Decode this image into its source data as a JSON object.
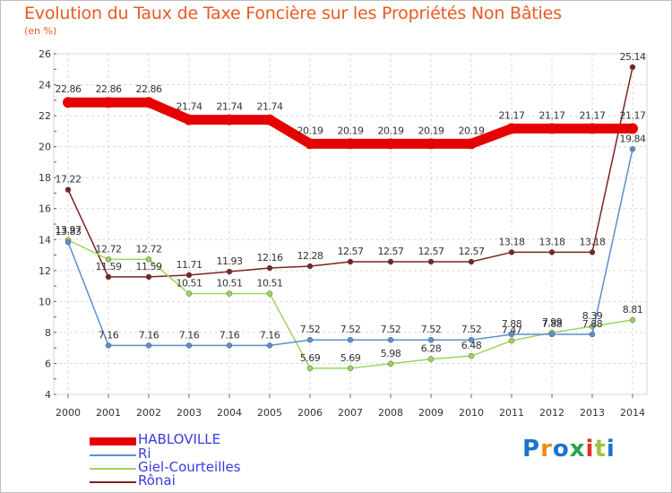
{
  "title": "Evolution du Taux de Taxe Foncière sur les Propriétés Non Bâties",
  "subtitle": "(en %)",
  "logo": {
    "letters": [
      "P",
      "r",
      "o",
      "x",
      "i",
      "t",
      "i"
    ],
    "colors": [
      "#1a75c9",
      "#f08a12",
      "#1a75c9",
      "#2aa34a",
      "#e03022",
      "#9cc63b",
      "#1a75c9"
    ]
  },
  "chart_data": {
    "type": "line",
    "title": "Evolution du Taux de Taxe Foncière sur les Propriétés Non Bâties",
    "ylabel": "(en %)",
    "xlabel": "",
    "categories": [
      "2000",
      "2001",
      "2002",
      "2003",
      "2004",
      "2005",
      "2006",
      "2007",
      "2008",
      "2009",
      "2010",
      "2011",
      "2012",
      "2013",
      "2014"
    ],
    "ylim": [
      4,
      26
    ],
    "yticks": [
      "4",
      "6",
      "8",
      "10",
      "12",
      "14",
      "16",
      "18",
      "20",
      "22",
      "24",
      "26"
    ],
    "grid": true,
    "legend_position": "bottom-left",
    "series": [
      {
        "name": "HABLOVILLE",
        "color": "#e60000",
        "values": [
          22.86,
          22.86,
          22.86,
          21.74,
          21.74,
          21.74,
          20.19,
          20.19,
          20.19,
          20.19,
          20.19,
          21.17,
          21.17,
          21.17,
          21.17
        ],
        "labels": [
          "22.86",
          "22.86",
          "22.86",
          "21.74",
          "21.74",
          "21.74",
          "20.19",
          "20.19",
          "20.19",
          "20.19",
          "20.19",
          "21.17",
          "21.17",
          "21.17",
          "21.17"
        ]
      },
      {
        "name": "Ri",
        "color": "#5a8fd0",
        "values": [
          13.83,
          7.16,
          7.16,
          7.16,
          7.16,
          7.16,
          7.52,
          7.52,
          7.52,
          7.52,
          7.52,
          7.88,
          7.88,
          7.88,
          19.84
        ],
        "labels": [
          "13.83",
          "7.16",
          "7.16",
          "7.16",
          "7.16",
          "7.16",
          "7.52",
          "7.52",
          "7.52",
          "7.52",
          "7.52",
          "7.88",
          "7.88",
          "7.88",
          "19.84"
        ]
      },
      {
        "name": "Giel-Courteilles",
        "color": "#99d65b",
        "values": [
          13.97,
          12.72,
          12.72,
          10.51,
          10.51,
          10.51,
          5.69,
          5.69,
          5.98,
          6.28,
          6.48,
          7.47,
          7.99,
          8.39,
          8.81
        ],
        "labels": [
          "13.97",
          "12.72",
          "12.72",
          "10.51",
          "10.51",
          "10.51",
          "5.69",
          "5.69",
          "5.98",
          "6.28",
          "6.48",
          "7.47",
          "7.99",
          "8.39",
          "8.81"
        ]
      },
      {
        "name": "Rônai",
        "color": "#7a2323",
        "values": [
          17.22,
          11.59,
          11.59,
          11.71,
          11.93,
          12.16,
          12.28,
          12.57,
          12.57,
          12.57,
          12.57,
          13.18,
          13.18,
          13.18,
          25.14
        ],
        "labels": [
          "17.22",
          "11.59",
          "11.59",
          "11.71",
          "11.93",
          "12.16",
          "12.28",
          "12.57",
          "12.57",
          "12.57",
          "12.57",
          "13.18",
          "13.18",
          "13.18",
          "25.14"
        ]
      }
    ]
  }
}
